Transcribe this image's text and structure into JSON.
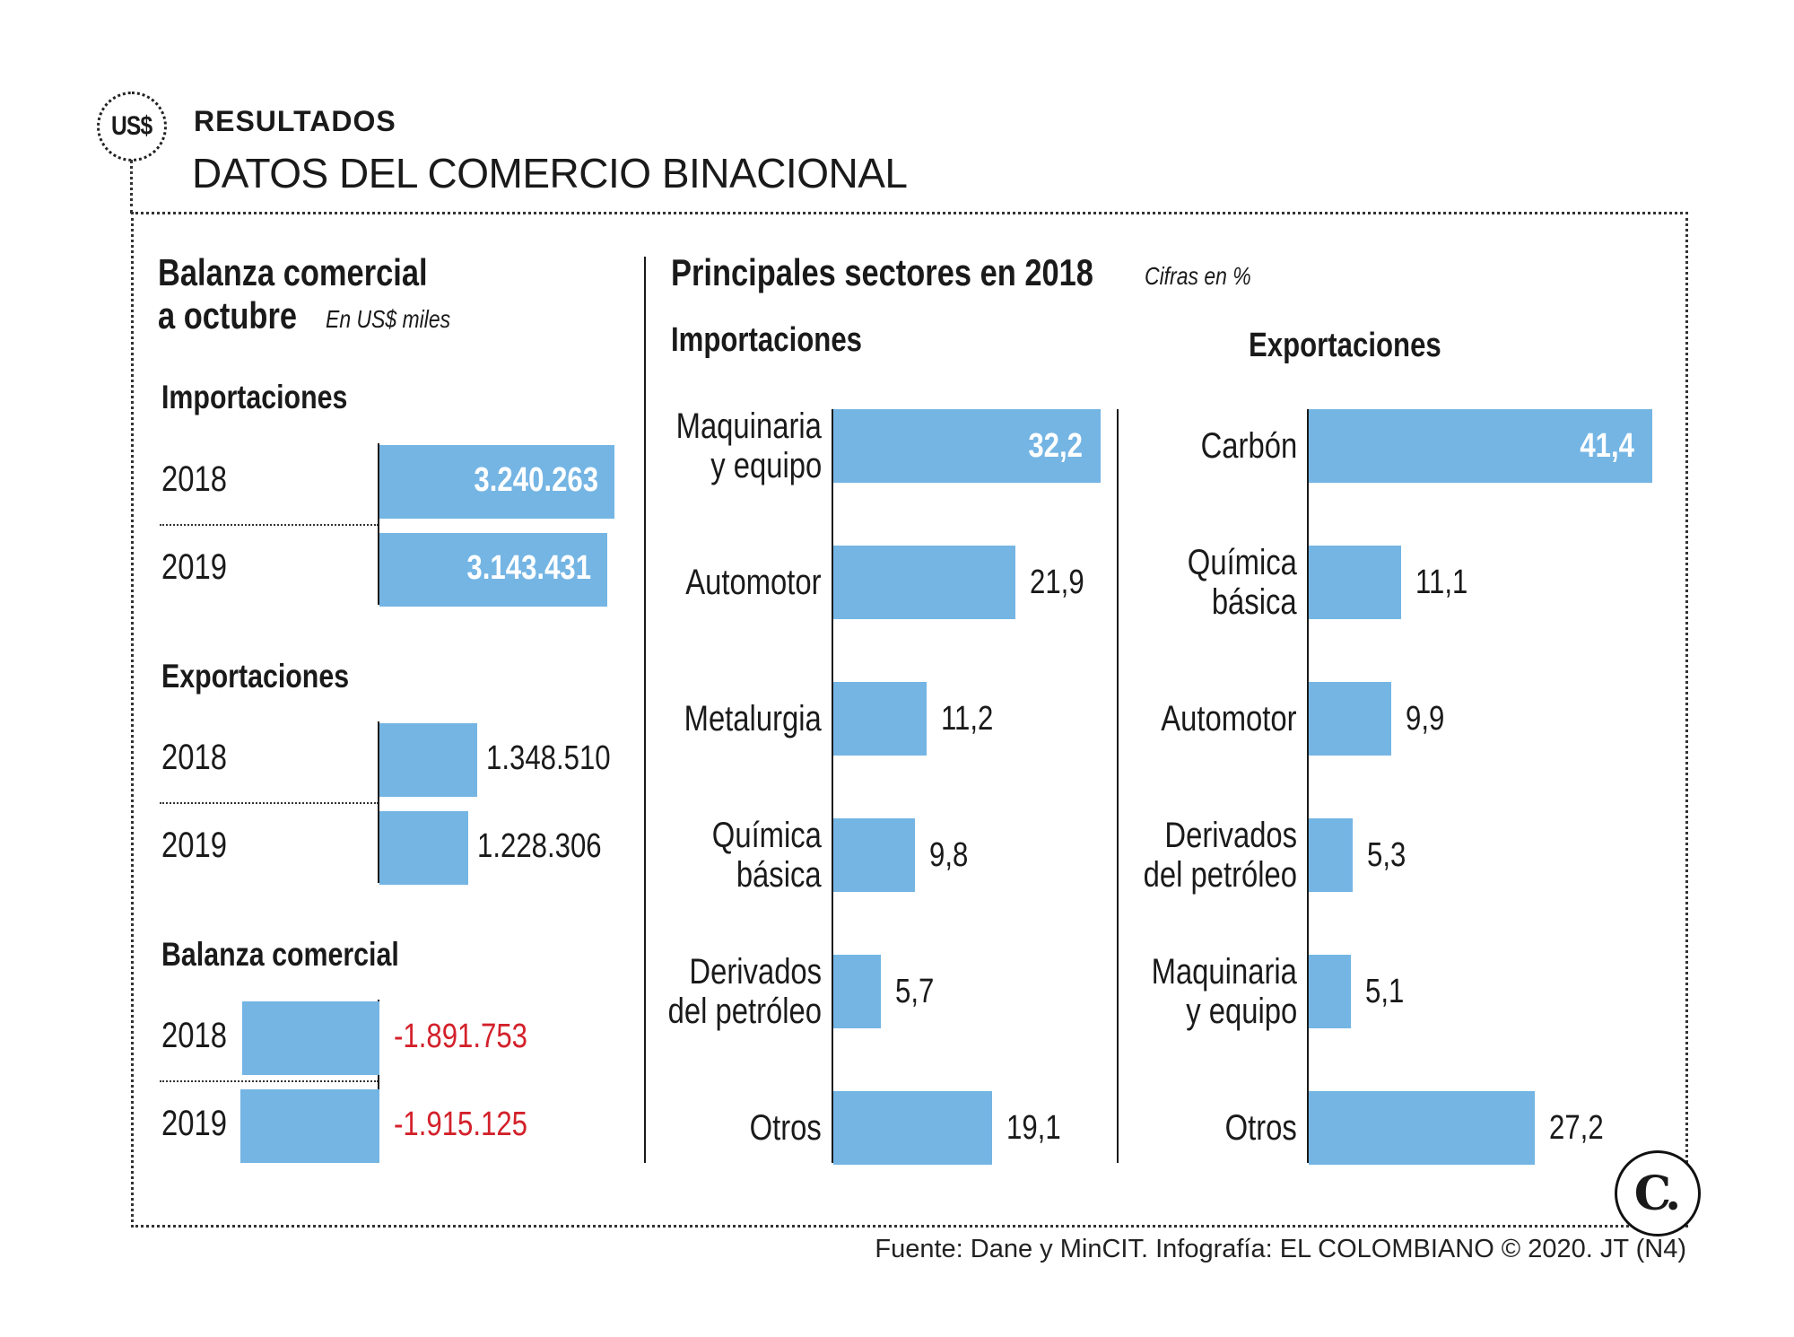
{
  "header": {
    "badge": "US$",
    "kicker": "RESULTADOS",
    "title": "DATOS DEL COMERCIO BINACIONAL"
  },
  "left": {
    "title_line1": "Balanza comercial",
    "title_line2": "a octubre",
    "unit": "En US$ miles"
  },
  "right": {
    "title": "Principales sectores en 2018",
    "unit": "Cifras en %"
  },
  "footer": {
    "source": "Fuente: Dane y MinCIT. Infografía: EL COLOMBIANO © 2020. JT (N4)"
  },
  "logo": {
    "letter": "C."
  },
  "chart_data": [
    {
      "type": "bar",
      "title": "Importaciones",
      "categories": [
        "2018",
        "2019"
      ],
      "values": [
        3240263,
        3143431
      ],
      "value_labels": [
        "3.240.263",
        "3.143.431"
      ],
      "unit": "US$ miles"
    },
    {
      "type": "bar",
      "title": "Exportaciones",
      "categories": [
        "2018",
        "2019"
      ],
      "values": [
        1348510,
        1228306
      ],
      "value_labels": [
        "1.348.510",
        "1.228.306"
      ],
      "unit": "US$ miles"
    },
    {
      "type": "bar",
      "title": "Balanza comercial",
      "categories": [
        "2018",
        "2019"
      ],
      "values": [
        -1891753,
        -1915125
      ],
      "value_labels": [
        "-1.891.753",
        "-1.915.125"
      ],
      "unit": "US$ miles"
    },
    {
      "type": "bar",
      "title": "Importaciones",
      "categories": [
        [
          "Maquinaria",
          "y equipo"
        ],
        [
          "Automotor"
        ],
        [
          "Metalurgia"
        ],
        [
          "Química",
          "básica"
        ],
        [
          "Derivados",
          "del petróleo"
        ],
        [
          "Otros"
        ]
      ],
      "values": [
        32.2,
        21.9,
        11.2,
        9.8,
        5.7,
        19.1
      ],
      "value_labels": [
        "32,2",
        "21,9",
        "11,2",
        "9,8",
        "5,7",
        "19,1"
      ],
      "unit": "%"
    },
    {
      "type": "bar",
      "title": "Exportaciones",
      "categories": [
        [
          "Carbón"
        ],
        [
          "Química",
          "básica"
        ],
        [
          "Automotor"
        ],
        [
          "Derivados",
          "del petróleo"
        ],
        [
          "Maquinaria",
          "y equipo"
        ],
        [
          "Otros"
        ]
      ],
      "values": [
        41.4,
        11.1,
        9.9,
        5.3,
        5.1,
        27.2
      ],
      "value_labels": [
        "41,4",
        "11,1",
        "9,9",
        "5,3",
        "5,1",
        "27,2"
      ],
      "unit": "%"
    }
  ]
}
